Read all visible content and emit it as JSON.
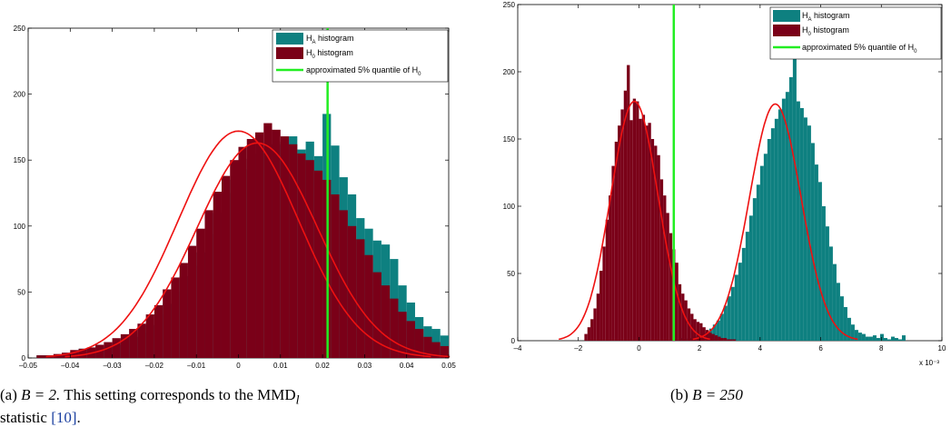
{
  "colors": {
    "HA": "#0e8080",
    "H0": "#7a0018",
    "fit": "#ee1111",
    "quantile": "#22ee22"
  },
  "panels": [
    {
      "caption": {
        "label": "(a)",
        "math": "B = 2.",
        "text": "This setting corresponds to the MMD",
        "sub": "l",
        "line2": "statistic",
        "cite": "[10]",
        "end": "."
      },
      "legend": {
        "ha_pre": "H",
        "ha_sub": "A",
        "ha_post": " histogram",
        "h0_pre": "H",
        "h0_sub": "0",
        "h0_post": " histogram",
        "q_text": "approximated 5% quantile of H",
        "q_sub": "0"
      },
      "xticks": [
        "–0.05",
        "–0.04",
        "–0.03",
        "–0.02",
        "–0.01",
        "0",
        "0.01",
        "0.02",
        "0.03",
        "0.04",
        "0.05"
      ],
      "yticks": [
        "0",
        "50",
        "100",
        "150",
        "200",
        "250"
      ],
      "exponent": ""
    },
    {
      "caption": {
        "label": "(b)",
        "math": "B = 250"
      },
      "legend": {
        "ha_pre": "H",
        "ha_sub": "A",
        "ha_post": " histogram",
        "h0_pre": "H",
        "h0_sub": "0",
        "h0_post": " histogram",
        "q_text": "approximated 5% quantile of H",
        "q_sub": "0"
      },
      "xticks": [
        "–4",
        "–2",
        "0",
        "2",
        "4",
        "6",
        "8",
        "10"
      ],
      "yticks": [
        "0",
        "50",
        "100",
        "150",
        "200",
        "250"
      ],
      "exponent": "x 10⁻³"
    }
  ],
  "chart_data": [
    {
      "type": "bar",
      "subtype": "histogram",
      "xlim": [
        -0.05,
        0.05
      ],
      "ylim": [
        0,
        250
      ],
      "quantile_x": 0.0212,
      "series": [
        {
          "name": "H_A histogram",
          "x_start": -0.048,
          "bin_width": 0.002,
          "counts": [
            2,
            2,
            2,
            3,
            5,
            7,
            6,
            8,
            9,
            10,
            13,
            16,
            19,
            25,
            33,
            41,
            50,
            62,
            70,
            80,
            94,
            110,
            125,
            135,
            143,
            151,
            155,
            160,
            162,
            164,
            168,
            158,
            164,
            153,
            185,
            161,
            137,
            124,
            106,
            98,
            89,
            86,
            75,
            55,
            42,
            31,
            24,
            22,
            17,
            14,
            12,
            8,
            7,
            5,
            3,
            2,
            2,
            2,
            1,
            1
          ]
        },
        {
          "name": "H_0 histogram",
          "x_start": -0.048,
          "bin_width": 0.002,
          "counts": [
            2,
            2,
            3,
            4,
            6,
            7,
            8,
            10,
            12,
            15,
            18,
            22,
            26,
            33,
            40,
            52,
            61,
            72,
            85,
            98,
            112,
            126,
            138,
            150,
            160,
            166,
            171,
            178,
            173,
            168,
            162,
            155,
            150,
            142,
            135,
            124,
            112,
            100,
            90,
            78,
            65,
            55,
            45,
            35,
            28,
            22,
            16,
            12,
            9,
            7,
            5,
            4,
            3,
            2,
            1,
            1,
            1,
            0,
            0,
            0
          ]
        }
      ],
      "fits": [
        {
          "series": "H0",
          "mean": 0.0,
          "sd": 0.0143,
          "peak": 172
        },
        {
          "series": "HA",
          "mean": 0.0045,
          "sd": 0.0143,
          "peak": 163
        }
      ]
    },
    {
      "type": "bar",
      "subtype": "histogram",
      "xlim": [
        -4,
        10
      ],
      "ylim": [
        0,
        250
      ],
      "x_multiplier": "x 10^-3",
      "quantile_x": 1.15,
      "series": [
        {
          "name": "H_A histogram",
          "x_start": 1.0,
          "bin_width": 0.12,
          "counts": [
            0,
            1,
            0,
            2,
            1,
            2,
            3,
            3,
            4,
            6,
            6,
            9,
            12,
            15,
            20,
            26,
            33,
            40,
            49,
            58,
            69,
            81,
            93,
            106,
            116,
            130,
            139,
            150,
            158,
            165,
            172,
            180,
            185,
            196,
            210,
            178,
            173,
            166,
            160,
            147,
            131,
            118,
            100,
            85,
            70,
            57,
            43,
            33,
            25,
            17,
            12,
            8,
            6,
            5,
            3,
            3,
            4,
            2,
            5,
            2,
            1,
            3,
            2,
            1,
            4,
            0
          ]
        },
        {
          "name": "H_0 histogram",
          "x_start": -1.8,
          "bin_width": 0.1,
          "counts": [
            5,
            10,
            16,
            24,
            35,
            52,
            70,
            90,
            108,
            130,
            148,
            160,
            172,
            186,
            205,
            164,
            180,
            178,
            165,
            168,
            160,
            162,
            150,
            145,
            138,
            120,
            108,
            95,
            80,
            68,
            58,
            42,
            35,
            30,
            24,
            20,
            16,
            14,
            13,
            10,
            8,
            6,
            5,
            4,
            3,
            2,
            2,
            1,
            1,
            1
          ]
        }
      ],
      "fits": [
        {
          "series": "H0",
          "mean": -0.15,
          "sd": 0.78,
          "peak": 178
        },
        {
          "series": "HA",
          "mean": 4.5,
          "sd": 0.85,
          "peak": 176
        }
      ]
    }
  ]
}
